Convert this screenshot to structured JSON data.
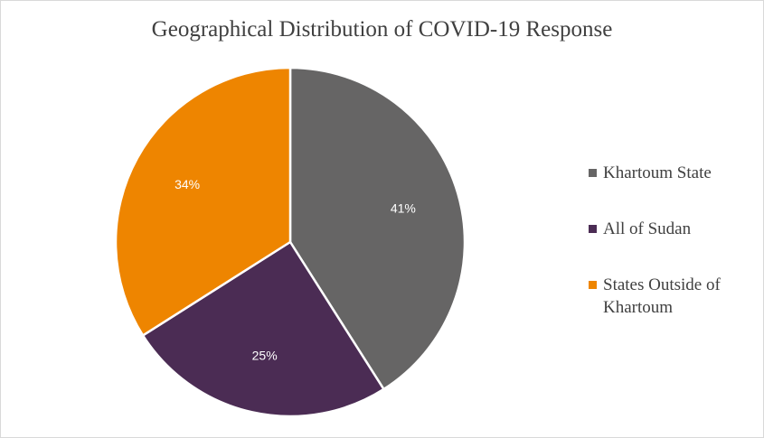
{
  "chart_data": {
    "type": "pie",
    "title": "Geographical Distribution of COVID-19 Response",
    "categories": [
      "Khartoum State",
      "All of Sudan",
      "States Outside of Khartoum"
    ],
    "values": [
      41,
      25,
      34
    ],
    "labels": [
      "41%",
      "25%",
      "34%"
    ],
    "colors": [
      "#666565",
      "#4b2c54",
      "#ee8500"
    ],
    "legend_position": "right",
    "start_angle_deg": 0,
    "direction": "clockwise"
  }
}
